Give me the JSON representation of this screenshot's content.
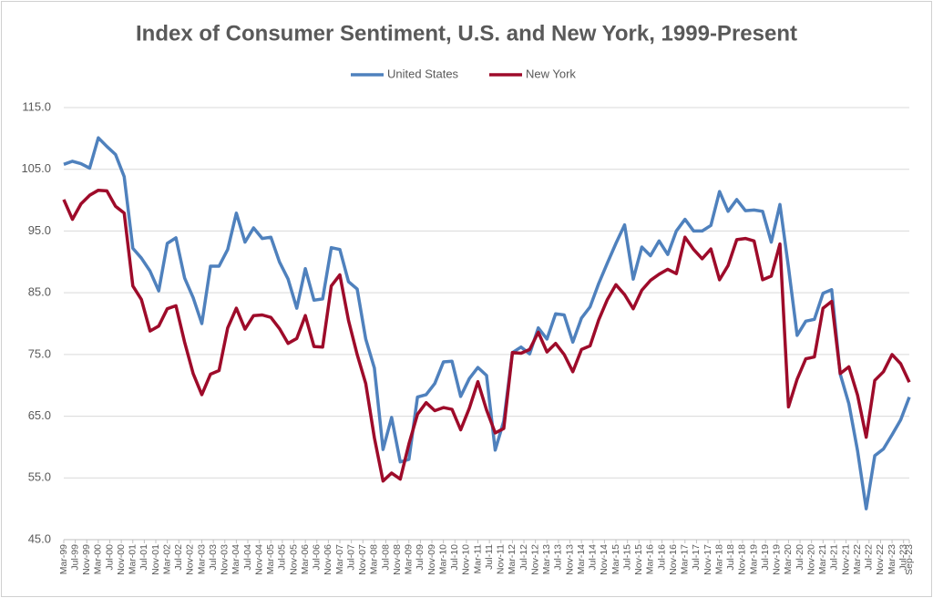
{
  "chart_data": {
    "type": "line",
    "title": "Index of Consumer Sentiment, U.S. and New York, 1999-Present",
    "x": [
      "Mar-99",
      "Jun-99",
      "Sep-99",
      "Dec-99",
      "Mar-00",
      "Jun-00",
      "Sep-00",
      "Dec-00",
      "Mar-01",
      "Jun-01",
      "Sep-01",
      "Dec-01",
      "Mar-02",
      "Jun-02",
      "Sep-02",
      "Dec-02",
      "Mar-03",
      "Jun-03",
      "Sep-03",
      "Dec-03",
      "Mar-04",
      "Jun-04",
      "Sep-04",
      "Dec-04",
      "Mar-05",
      "Jun-05",
      "Sep-05",
      "Dec-05",
      "Mar-06",
      "Jun-06",
      "Sep-06",
      "Dec-06",
      "Mar-07",
      "Jun-07",
      "Sep-07",
      "Dec-07",
      "Mar-08",
      "Jun-08",
      "Sep-08",
      "Dec-08",
      "Mar-09",
      "Jun-09",
      "Sep-09",
      "Dec-09",
      "Mar-10",
      "Jun-10",
      "Sep-10",
      "Dec-10",
      "Mar-11",
      "Jun-11",
      "Sep-11",
      "Dec-11",
      "Mar-12",
      "Jun-12",
      "Sep-12",
      "Dec-12",
      "Mar-13",
      "Jun-13",
      "Sep-13",
      "Dec-13",
      "Mar-14",
      "Jun-14",
      "Sep-14",
      "Dec-14",
      "Mar-15",
      "Jun-15",
      "Sep-15",
      "Dec-15",
      "Mar-16",
      "Jun-16",
      "Sep-16",
      "Dec-16",
      "Mar-17",
      "Jun-17",
      "Sep-17",
      "Dec-17",
      "Mar-18",
      "Jun-18",
      "Sep-18",
      "Dec-18",
      "Mar-19",
      "Jun-19",
      "Sep-19",
      "Dec-19",
      "Mar-20",
      "Jun-20",
      "Sep-20",
      "Dec-20",
      "Mar-21",
      "Jun-21",
      "Sep-21",
      "Dec-21",
      "Mar-22",
      "Jun-22",
      "Sep-22",
      "Dec-22",
      "Mar-23",
      "Jun-23",
      "Sep-23"
    ],
    "series": [
      {
        "name": "United States",
        "color": "#4f81bd",
        "values": [
          105.8,
          106.3,
          105.9,
          105.2,
          110.1,
          108.7,
          107.4,
          103.8,
          92.2,
          90.6,
          88.5,
          85.3,
          93.0,
          93.9,
          87.4,
          84.2,
          80.0,
          89.3,
          89.3,
          92.0,
          97.9,
          93.2,
          95.5,
          93.8,
          94.0,
          90.0,
          87.2,
          82.5,
          88.9,
          83.8,
          84.0,
          92.3,
          92.0,
          86.8,
          85.6,
          77.5,
          72.8,
          59.6,
          64.8,
          57.6,
          58.0,
          68.1,
          68.5,
          70.3,
          73.8,
          73.9,
          68.2,
          71.1,
          72.9,
          71.6,
          59.5,
          64.2,
          75.3,
          76.2,
          75.1,
          79.3,
          77.5,
          81.6,
          81.4,
          77.0,
          80.9,
          82.7,
          86.5,
          89.8,
          93.0,
          96.0,
          87.2,
          92.4,
          91.0,
          93.4,
          91.2,
          95.0,
          96.9,
          95.0,
          95.0,
          95.9,
          101.4,
          98.2,
          100.1,
          98.3,
          98.4,
          98.2,
          93.2,
          99.3,
          89.1,
          78.1,
          80.4,
          80.7,
          84.9,
          85.5,
          71.8,
          67.0,
          59.4,
          50.0,
          58.6,
          59.7,
          62.0,
          64.4,
          68.1
        ]
      },
      {
        "name": "New York",
        "color": "#9e0b2a",
        "values": [
          100.1,
          96.9,
          99.4,
          100.8,
          101.6,
          101.5,
          99.0,
          97.9,
          86.1,
          83.9,
          78.8,
          79.6,
          82.4,
          82.9,
          77.0,
          71.9,
          68.5,
          71.8,
          72.4,
          79.3,
          82.5,
          79.1,
          81.3,
          81.4,
          81.0,
          79.2,
          76.8,
          77.6,
          81.3,
          76.3,
          76.2,
          86.1,
          87.9,
          80.5,
          75.0,
          70.3,
          61.5,
          54.5,
          55.8,
          54.8,
          60.5,
          65.3,
          67.2,
          65.9,
          66.4,
          66.1,
          62.8,
          66.3,
          70.6,
          66.0,
          62.3,
          63.0,
          75.3,
          75.2,
          75.8,
          78.6,
          75.4,
          76.8,
          75.0,
          72.2,
          75.8,
          76.4,
          80.6,
          83.9,
          86.3,
          84.7,
          82.4,
          85.4,
          87.0,
          88.0,
          88.8,
          88.1,
          94.0,
          92.0,
          90.5,
          92.1,
          87.1,
          89.4,
          93.6,
          93.8,
          93.4,
          87.1,
          87.7,
          92.9,
          66.5,
          71.0,
          74.3,
          74.6,
          82.5,
          83.6,
          71.9,
          73.0,
          68.4,
          61.6,
          70.8,
          72.2,
          75.0,
          73.5,
          70.5
        ]
      }
    ],
    "xticks": [
      "Mar-99",
      "Jul-99",
      "Nov-99",
      "Mar-00",
      "Jul-00",
      "Nov-00",
      "Mar-01",
      "Jul-01",
      "Nov-01",
      "Mar-02",
      "Jul-02",
      "Nov-02",
      "Mar-03",
      "Jul-03",
      "Nov-03",
      "Mar-04",
      "Jul-04",
      "Nov-04",
      "Mar-05",
      "Jul-05",
      "Nov-05",
      "Mar-06",
      "Jul-06",
      "Nov-06",
      "Mar-07",
      "Jul-07",
      "Nov-07",
      "Mar-08",
      "Jul-08",
      "Nov-08",
      "Mar-09",
      "Jul-09",
      "Nov-09",
      "Mar-10",
      "Jul-10",
      "Nov-10",
      "Mar-11",
      "Jul-11",
      "Nov-11",
      "Mar-12",
      "Jul-12",
      "Nov-12",
      "Mar-13",
      "Jul-13",
      "Nov-13",
      "Mar-14",
      "Jul-14",
      "Nov-14",
      "Mar-15",
      "Jul-15",
      "Nov-15",
      "Mar-16",
      "Jul-16",
      "Nov-16",
      "Mar-17",
      "Jul-17",
      "Nov-17",
      "Mar-18",
      "Jul-18",
      "Nov-18",
      "Mar-19",
      "Jul-19",
      "Nov-19",
      "Mar-20",
      "Jul-20",
      "Nov-20",
      "Mar-21",
      "Jul-21",
      "Nov-21",
      "Mar-22",
      "Jul-22",
      "Nov-22",
      "Mar-23",
      "Jul-23",
      "Sep-23"
    ],
    "ylim": [
      45,
      115
    ],
    "yticks": [
      {
        "value": 45,
        "label": "45.0"
      },
      {
        "value": 55,
        "label": "55.0"
      },
      {
        "value": 65,
        "label": "65.0"
      },
      {
        "value": 75,
        "label": "75.0"
      },
      {
        "value": 85,
        "label": "85.0"
      },
      {
        "value": 95,
        "label": "95.0"
      },
      {
        "value": 105,
        "label": "105.0"
      },
      {
        "value": 115,
        "label": "115.0"
      }
    ],
    "grid": true,
    "legend": "top"
  }
}
